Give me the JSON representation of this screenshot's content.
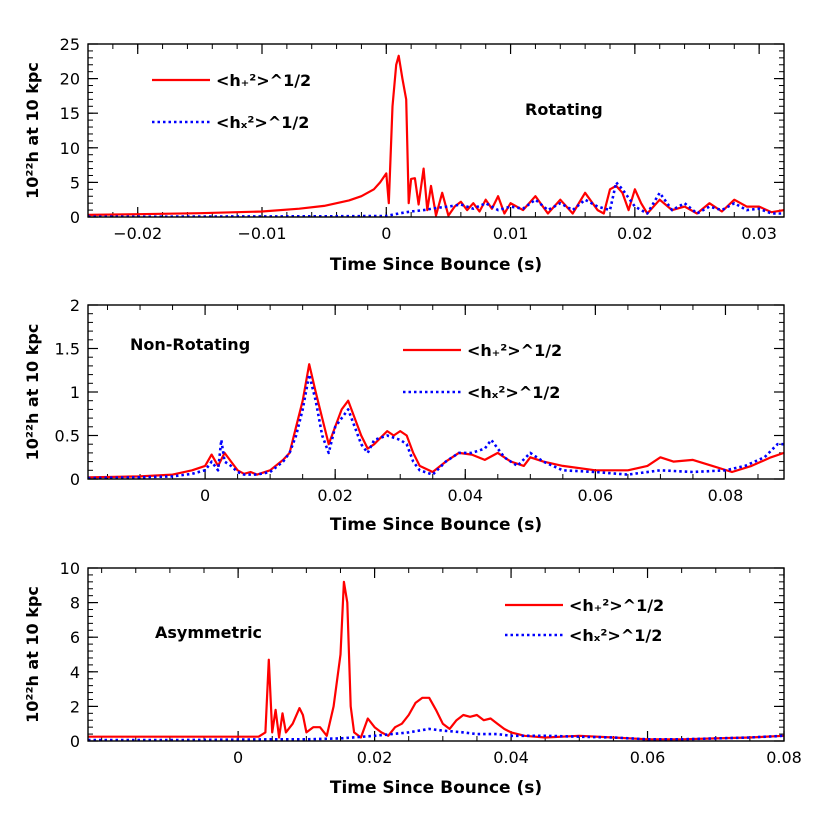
{
  "chart_data": [
    {
      "type": "line",
      "annotation": "Rotating",
      "xlabel": "Time Since Bounce (s)",
      "ylabel": "10²²h at 10 kpc",
      "xlim": [
        -0.024,
        0.032
      ],
      "ylim": [
        0,
        25
      ],
      "xticks": [
        "-0.02",
        "-0.01",
        "0",
        "0.01",
        "0.02",
        "0.03"
      ],
      "xtick_values": [
        -0.02,
        -0.01,
        0,
        0.01,
        0.02,
        0.03
      ],
      "yticks": [
        "0",
        "5",
        "10",
        "15",
        "20",
        "25"
      ],
      "ytick_values": [
        0,
        5,
        10,
        15,
        20,
        25
      ],
      "legend_position": "top-left",
      "series": [
        {
          "name": "<h₊²>^1/2",
          "color": "#ff0000",
          "style": "solid",
          "x": [
            -0.024,
            -0.02,
            -0.015,
            -0.01,
            -0.007,
            -0.005,
            -0.003,
            -0.002,
            -0.001,
            -0.0005,
            0,
            0.0002,
            0.0005,
            0.0008,
            0.001,
            0.0013,
            0.0016,
            0.0018,
            0.002,
            0.0023,
            0.0026,
            0.003,
            0.0033,
            0.0036,
            0.004,
            0.0045,
            0.005,
            0.0055,
            0.006,
            0.0065,
            0.007,
            0.0075,
            0.008,
            0.0085,
            0.009,
            0.0095,
            0.01,
            0.011,
            0.012,
            0.013,
            0.014,
            0.015,
            0.016,
            0.017,
            0.0175,
            0.018,
            0.0185,
            0.019,
            0.0195,
            0.02,
            0.0205,
            0.021,
            0.022,
            0.023,
            0.024,
            0.025,
            0.026,
            0.027,
            0.028,
            0.029,
            0.03,
            0.031,
            0.032
          ],
          "y": [
            0.3,
            0.4,
            0.55,
            0.8,
            1.2,
            1.6,
            2.4,
            3.0,
            4.0,
            5.0,
            6.3,
            2.0,
            16.0,
            22.0,
            23.3,
            20.0,
            17.0,
            2.0,
            5.5,
            5.6,
            1.8,
            7.0,
            1.0,
            4.5,
            0.2,
            3.5,
            0.2,
            1.5,
            2.2,
            1.0,
            2.0,
            0.8,
            2.5,
            1.2,
            3.0,
            0.5,
            2.0,
            1.0,
            3.0,
            0.5,
            2.5,
            0.5,
            3.5,
            1.0,
            0.5,
            4.0,
            4.5,
            3.5,
            1.0,
            4.0,
            2.0,
            0.5,
            2.5,
            1.0,
            1.5,
            0.5,
            2.0,
            0.8,
            2.5,
            1.5,
            1.5,
            0.7,
            1.0
          ]
        },
        {
          "name": "<hₓ²>^1/2",
          "color": "#0000ff",
          "style": "dotted",
          "x": [
            -0.024,
            -0.02,
            -0.01,
            -0.005,
            0,
            0.001,
            0.002,
            0.003,
            0.004,
            0.005,
            0.006,
            0.007,
            0.008,
            0.009,
            0.01,
            0.011,
            0.012,
            0.013,
            0.014,
            0.015,
            0.016,
            0.017,
            0.018,
            0.0185,
            0.019,
            0.02,
            0.021,
            0.022,
            0.023,
            0.024,
            0.025,
            0.026,
            0.027,
            0.028,
            0.029,
            0.03,
            0.031,
            0.032
          ],
          "y": [
            0.05,
            0.05,
            0.08,
            0.1,
            0.15,
            0.5,
            0.8,
            1.0,
            1.3,
            1.5,
            1.8,
            1.2,
            2.0,
            1.0,
            1.5,
            1.2,
            2.5,
            1.0,
            2.0,
            1.0,
            2.5,
            1.5,
            1.0,
            5.0,
            4.0,
            1.5,
            0.5,
            3.5,
            1.0,
            2.0,
            0.5,
            1.5,
            1.0,
            2.0,
            1.0,
            1.2,
            0.5,
            0.5
          ]
        }
      ]
    },
    {
      "type": "line",
      "annotation": "Non-Rotating",
      "xlabel": "Time Since Bounce (s)",
      "ylabel": "10²²h at 10 kpc",
      "xlim": [
        -0.018,
        0.089
      ],
      "ylim": [
        0,
        2
      ],
      "xticks": [
        "0",
        "0.02",
        "0.04",
        "0.06",
        "0.08"
      ],
      "xtick_values": [
        0,
        0.02,
        0.04,
        0.06,
        0.08
      ],
      "yticks": [
        "0",
        "0.5",
        "1",
        "1.5",
        "2"
      ],
      "ytick_values": [
        0,
        0.5,
        1,
        1.5,
        2
      ],
      "legend_position": "top-center",
      "series": [
        {
          "name": "<h₊²>^1/2",
          "color": "#ff0000",
          "style": "solid",
          "x": [
            -0.018,
            -0.01,
            -0.005,
            -0.002,
            0,
            0.001,
            0.002,
            0.003,
            0.004,
            0.005,
            0.006,
            0.007,
            0.008,
            0.01,
            0.012,
            0.013,
            0.014,
            0.015,
            0.016,
            0.017,
            0.018,
            0.019,
            0.02,
            0.021,
            0.022,
            0.023,
            0.024,
            0.025,
            0.026,
            0.028,
            0.029,
            0.03,
            0.031,
            0.032,
            0.033,
            0.035,
            0.037,
            0.039,
            0.041,
            0.043,
            0.045,
            0.047,
            0.049,
            0.05,
            0.052,
            0.055,
            0.06,
            0.065,
            0.068,
            0.07,
            0.072,
            0.075,
            0.078,
            0.081,
            0.084,
            0.087,
            0.089
          ],
          "y": [
            0.02,
            0.03,
            0.05,
            0.1,
            0.15,
            0.28,
            0.15,
            0.3,
            0.2,
            0.1,
            0.06,
            0.08,
            0.05,
            0.1,
            0.22,
            0.3,
            0.6,
            0.9,
            1.32,
            1.0,
            0.7,
            0.4,
            0.6,
            0.8,
            0.9,
            0.7,
            0.5,
            0.35,
            0.4,
            0.55,
            0.5,
            0.55,
            0.5,
            0.3,
            0.15,
            0.08,
            0.2,
            0.3,
            0.28,
            0.22,
            0.3,
            0.2,
            0.15,
            0.25,
            0.2,
            0.15,
            0.1,
            0.1,
            0.15,
            0.25,
            0.2,
            0.22,
            0.15,
            0.08,
            0.15,
            0.25,
            0.3
          ]
        },
        {
          "name": "<hₓ²>^1/2",
          "color": "#0000ff",
          "style": "dotted",
          "x": [
            -0.018,
            -0.01,
            -0.005,
            -0.002,
            0,
            0.001,
            0.002,
            0.0025,
            0.003,
            0.004,
            0.005,
            0.006,
            0.008,
            0.01,
            0.012,
            0.013,
            0.014,
            0.015,
            0.016,
            0.017,
            0.018,
            0.019,
            0.02,
            0.021,
            0.022,
            0.023,
            0.024,
            0.025,
            0.026,
            0.028,
            0.03,
            0.031,
            0.032,
            0.033,
            0.035,
            0.037,
            0.039,
            0.041,
            0.043,
            0.044,
            0.046,
            0.048,
            0.05,
            0.052,
            0.055,
            0.06,
            0.065,
            0.07,
            0.075,
            0.08,
            0.083,
            0.086,
            0.088,
            0.089
          ],
          "y": [
            0.01,
            0.02,
            0.03,
            0.06,
            0.1,
            0.2,
            0.1,
            0.45,
            0.2,
            0.15,
            0.08,
            0.05,
            0.05,
            0.08,
            0.2,
            0.3,
            0.5,
            0.8,
            1.2,
            0.9,
            0.5,
            0.3,
            0.6,
            0.7,
            0.8,
            0.6,
            0.4,
            0.3,
            0.45,
            0.5,
            0.45,
            0.4,
            0.2,
            0.1,
            0.05,
            0.2,
            0.3,
            0.3,
            0.35,
            0.45,
            0.25,
            0.15,
            0.3,
            0.2,
            0.1,
            0.08,
            0.05,
            0.1,
            0.08,
            0.1,
            0.15,
            0.25,
            0.4,
            0.4
          ]
        }
      ]
    },
    {
      "type": "line",
      "annotation": "Asymmetric",
      "xlabel": "Time Since Bounce (s)",
      "ylabel": "10²²h at 10 kpc",
      "xlim": [
        -0.022,
        0.08
      ],
      "ylim": [
        0,
        10
      ],
      "xticks": [
        "0",
        "0.02",
        "0.04",
        "0.06",
        "0.08"
      ],
      "xtick_values": [
        0,
        0.02,
        0.04,
        0.06,
        0.08
      ],
      "yticks": [
        "0",
        "2",
        "4",
        "6",
        "8",
        "10"
      ],
      "ytick_values": [
        0,
        2,
        4,
        6,
        8,
        10
      ],
      "legend_position": "top-right",
      "series": [
        {
          "name": "<h₊²>^1/2",
          "color": "#ff0000",
          "style": "solid",
          "x": [
            -0.022,
            -0.01,
            0,
            0.003,
            0.004,
            0.0045,
            0.005,
            0.0055,
            0.006,
            0.0065,
            0.007,
            0.008,
            0.009,
            0.0095,
            0.01,
            0.011,
            0.012,
            0.013,
            0.014,
            0.015,
            0.0155,
            0.016,
            0.0165,
            0.017,
            0.018,
            0.019,
            0.02,
            0.021,
            0.022,
            0.023,
            0.024,
            0.025,
            0.026,
            0.027,
            0.028,
            0.029,
            0.03,
            0.031,
            0.032,
            0.033,
            0.034,
            0.035,
            0.036,
            0.037,
            0.038,
            0.039,
            0.04,
            0.042,
            0.045,
            0.05,
            0.055,
            0.06,
            0.065,
            0.07,
            0.075,
            0.08
          ],
          "y": [
            0.25,
            0.25,
            0.25,
            0.25,
            0.5,
            4.7,
            0.5,
            1.8,
            0.2,
            1.6,
            0.5,
            1.0,
            1.9,
            1.5,
            0.5,
            0.8,
            0.8,
            0.3,
            2.0,
            5.0,
            9.2,
            8.0,
            2.0,
            0.5,
            0.2,
            1.3,
            0.8,
            0.5,
            0.3,
            0.8,
            1.0,
            1.5,
            2.2,
            2.5,
            2.5,
            1.8,
            1.0,
            0.7,
            1.2,
            1.5,
            1.4,
            1.5,
            1.2,
            1.3,
            1.0,
            0.7,
            0.5,
            0.3,
            0.2,
            0.3,
            0.2,
            0.1,
            0.1,
            0.15,
            0.2,
            0.3
          ]
        },
        {
          "name": "<hₓ²>^1/2",
          "color": "#0000ff",
          "style": "dotted",
          "x": [
            -0.022,
            -0.01,
            0,
            0.005,
            0.01,
            0.015,
            0.02,
            0.025,
            0.028,
            0.03,
            0.033,
            0.035,
            0.038,
            0.04,
            0.045,
            0.05,
            0.055,
            0.06,
            0.065,
            0.07,
            0.075,
            0.08
          ],
          "y": [
            0.05,
            0.05,
            0.08,
            0.1,
            0.1,
            0.15,
            0.3,
            0.5,
            0.7,
            0.6,
            0.5,
            0.4,
            0.4,
            0.3,
            0.3,
            0.25,
            0.2,
            0.1,
            0.1,
            0.15,
            0.2,
            0.3
          ]
        }
      ]
    }
  ]
}
